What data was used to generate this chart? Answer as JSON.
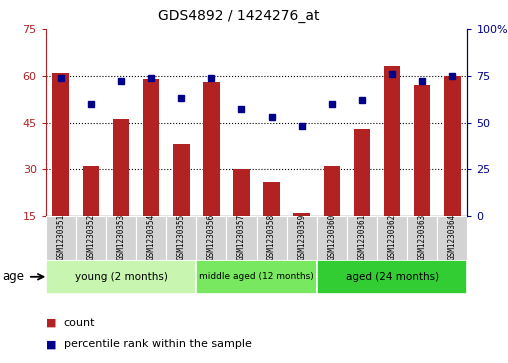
{
  "title": "GDS4892 / 1424276_at",
  "samples": [
    "GSM1230351",
    "GSM1230352",
    "GSM1230353",
    "GSM1230354",
    "GSM1230355",
    "GSM1230356",
    "GSM1230357",
    "GSM1230358",
    "GSM1230359",
    "GSM1230360",
    "GSM1230361",
    "GSM1230362",
    "GSM1230363",
    "GSM1230364"
  ],
  "counts": [
    61,
    31,
    46,
    59,
    38,
    58,
    30,
    26,
    16,
    31,
    43,
    63,
    57,
    60
  ],
  "percentiles": [
    74,
    60,
    72,
    74,
    63,
    74,
    57,
    53,
    48,
    60,
    62,
    76,
    72,
    75
  ],
  "ylim_left": [
    15,
    75
  ],
  "ylim_right": [
    0,
    100
  ],
  "yticks_left": [
    15,
    30,
    45,
    60,
    75
  ],
  "yticks_right": [
    0,
    25,
    50,
    75,
    100
  ],
  "ytick_labels_right": [
    "0",
    "25",
    "50",
    "75",
    "100%"
  ],
  "bar_color": "#B22222",
  "dot_color": "#00008B",
  "bar_width": 0.55,
  "groups": [
    {
      "label": "young (2 months)",
      "start": 0,
      "end": 4
    },
    {
      "label": "middle aged (12 months)",
      "start": 5,
      "end": 8
    },
    {
      "label": "aged (24 months)",
      "start": 9,
      "end": 13
    }
  ],
  "group_colors": [
    "#c8f5b0",
    "#78e860",
    "#32cd32"
  ],
  "legend_count_label": "count",
  "legend_percentile_label": "percentile rank within the sample"
}
